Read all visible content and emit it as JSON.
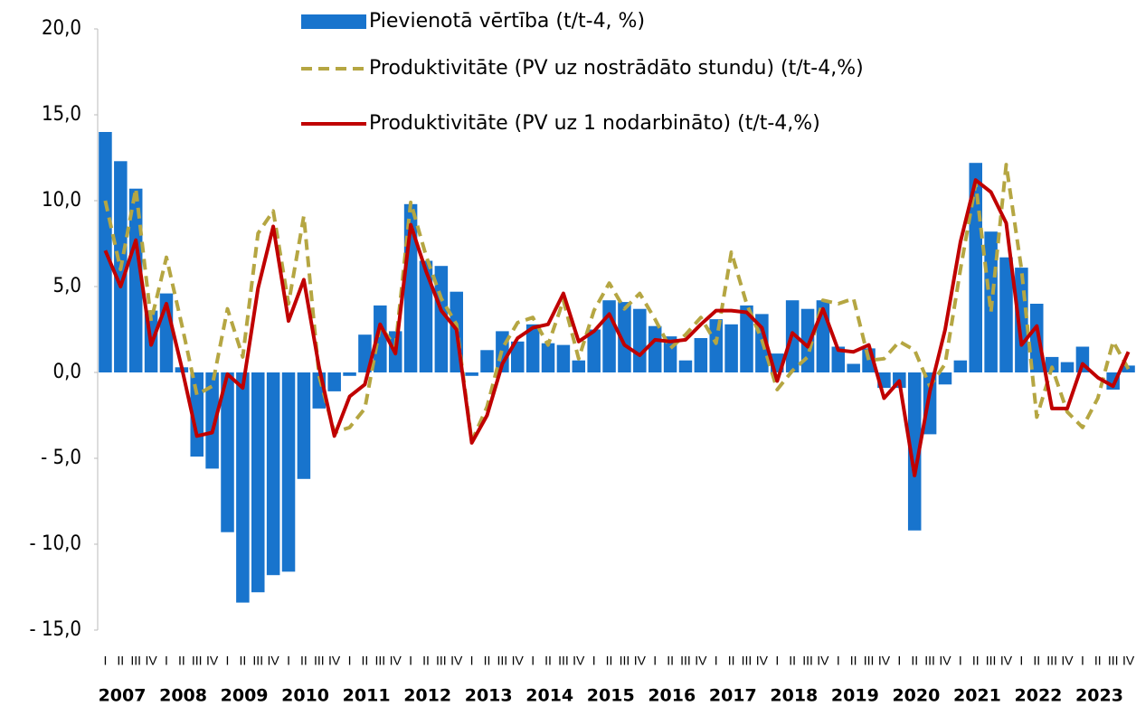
{
  "chart_data": {
    "type": "bar-line",
    "categories": [
      "I",
      "II",
      "III",
      "IV",
      "I",
      "II",
      "III",
      "IV",
      "I",
      "II",
      "III",
      "IV",
      "I",
      "II",
      "III",
      "IV",
      "I",
      "II",
      "III",
      "IV",
      "I",
      "II",
      "III",
      "IV",
      "I",
      "II",
      "III",
      "IV",
      "I",
      "II",
      "III",
      "IV",
      "I",
      "II",
      "III",
      "IV",
      "I",
      "II",
      "III",
      "IV",
      "I",
      "II",
      "III",
      "IV",
      "I",
      "II",
      "III",
      "IV",
      "I",
      "II",
      "III",
      "IV",
      "I",
      "II",
      "III",
      "IV",
      "I",
      "II",
      "III",
      "IV",
      "I",
      "II",
      "III",
      "IV",
      "I",
      "II",
      "III",
      "IV"
    ],
    "years": [
      "2007",
      "2008",
      "2009",
      "2010",
      "2011",
      "2012",
      "2013",
      "2014",
      "2015",
      "2016",
      "2017",
      "2018",
      "2019",
      "2020",
      "2021",
      "2022",
      "2023"
    ],
    "series": [
      {
        "name": "Pievienotā vērtība (t/t-4, %)",
        "kind": "bar",
        "color": "#1874cd",
        "values": [
          14.0,
          12.3,
          10.7,
          3.6,
          4.6,
          0.3,
          -4.9,
          -5.6,
          -9.3,
          -13.4,
          -12.8,
          -11.8,
          -11.6,
          -6.2,
          -2.1,
          -1.1,
          -0.2,
          2.2,
          3.9,
          2.4,
          9.8,
          6.5,
          6.2,
          4.7,
          -0.2,
          1.3,
          2.4,
          1.8,
          2.8,
          1.7,
          1.6,
          0.7,
          2.5,
          4.2,
          4.1,
          3.7,
          2.7,
          2.1,
          0.7,
          2.0,
          3.1,
          2.8,
          3.9,
          3.4,
          1.1,
          4.2,
          3.7,
          4.2,
          1.5,
          0.5,
          1.4,
          -0.9,
          -0.9,
          -9.2,
          -3.6,
          -0.7,
          0.7,
          12.2,
          8.2,
          6.7,
          6.1,
          4.0,
          0.9,
          0.6,
          1.5,
          0.0,
          -1.0,
          0.4
        ]
      },
      {
        "name": "Produktivitāte (PV uz nostrādāto stundu) (t/t-4,%)",
        "kind": "dashed-line",
        "color": "#b5a642",
        "values": [
          10.0,
          6.0,
          10.7,
          3.0,
          6.7,
          2.8,
          -1.3,
          -0.8,
          3.7,
          0.9,
          8.1,
          9.4,
          4.0,
          9.1,
          -0.2,
          -3.5,
          -3.2,
          -2.1,
          2.7,
          1.5,
          9.9,
          6.8,
          4.3,
          2.8,
          -4.0,
          -2.0,
          1.4,
          2.9,
          3.2,
          1.6,
          4.2,
          0.8,
          3.6,
          5.2,
          3.7,
          4.6,
          3.1,
          1.4,
          2.2,
          3.2,
          1.7,
          7.0,
          4.0,
          1.9,
          -1.0,
          0.1,
          0.9,
          4.2,
          4.0,
          4.3,
          0.7,
          0.8,
          1.8,
          1.3,
          -0.8,
          0.5,
          6.0,
          11.0,
          3.5,
          12.1,
          6.0,
          -2.6,
          0.3,
          -2.3,
          -3.2,
          -1.5,
          1.8,
          0.2
        ]
      },
      {
        "name": "Produktivitāte (PV uz 1 nodarbināto)  (t/t-4,%)",
        "kind": "line",
        "color": "#c00000",
        "values": [
          7.1,
          5.0,
          7.7,
          1.6,
          4.0,
          0.3,
          -3.7,
          -3.5,
          -0.1,
          -0.9,
          4.9,
          8.5,
          3.0,
          5.4,
          0.3,
          -3.7,
          -1.4,
          -0.7,
          2.8,
          1.1,
          8.6,
          5.9,
          3.6,
          2.5,
          -4.1,
          -2.5,
          0.5,
          2.0,
          2.6,
          2.8,
          4.6,
          1.8,
          2.4,
          3.4,
          1.6,
          1.0,
          1.9,
          1.8,
          1.9,
          2.8,
          3.6,
          3.6,
          3.5,
          2.6,
          -0.5,
          2.3,
          1.5,
          3.7,
          1.3,
          1.2,
          1.6,
          -1.5,
          -0.5,
          -6.0,
          -1.1,
          2.5,
          7.6,
          11.2,
          10.5,
          8.7,
          1.6,
          2.7,
          -2.1,
          -2.1,
          0.5,
          -0.3,
          -0.8,
          1.2
        ]
      }
    ],
    "ylim": [
      -15,
      20
    ],
    "yticks": [
      {
        "value": 20,
        "label": "20,0"
      },
      {
        "value": 15,
        "label": "15,0"
      },
      {
        "value": 10,
        "label": "10,0"
      },
      {
        "value": 5,
        "label": "5,0"
      },
      {
        "value": 0,
        "label": "0,0"
      },
      {
        "value": -5,
        "label": "- 5,0"
      },
      {
        "value": -10,
        "label": "- 10,0"
      },
      {
        "value": -15,
        "label": "- 15,0"
      }
    ],
    "legend": "top"
  }
}
